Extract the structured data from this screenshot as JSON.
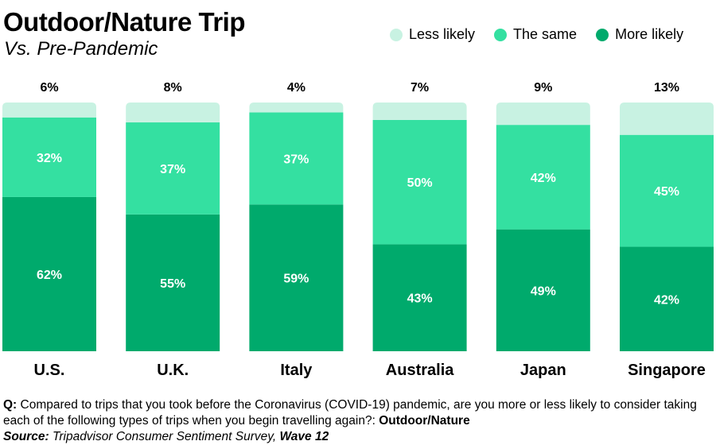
{
  "header": {
    "title": "Outdoor/Nature Trip",
    "subtitle": "Vs. Pre-Pandemic"
  },
  "colors": {
    "less_likely": "#c8f2e2",
    "the_same": "#34e0a1",
    "more_likely": "#00aa6c",
    "label_dark": "#000000",
    "label_light": "#ffffff"
  },
  "chart_data": {
    "type": "bar",
    "stacked": true,
    "categories": [
      "U.S.",
      "U.K.",
      "Italy",
      "Australia",
      "Japan",
      "Singapore"
    ],
    "series": [
      {
        "name": "More likely",
        "values": [
          62,
          55,
          59,
          43,
          49,
          42
        ]
      },
      {
        "name": "The same",
        "values": [
          32,
          37,
          37,
          50,
          42,
          45
        ]
      },
      {
        "name": "Less likely",
        "values": [
          6,
          8,
          4,
          7,
          9,
          13
        ]
      }
    ],
    "value_labels": {
      "More likely": [
        "62%",
        "55%",
        "59%",
        "43%",
        "49%",
        "42%"
      ],
      "The same": [
        "32%",
        "37%",
        "37%",
        "50%",
        "42%",
        "45%"
      ],
      "Less likely": [
        "6%",
        "8%",
        "4%",
        "7%",
        "9%",
        "13%"
      ]
    },
    "legend": [
      "Less likely",
      "The same",
      "More likely"
    ],
    "legend_position": "top-right",
    "ylim": [
      0,
      100
    ],
    "grid": false
  },
  "footer": {
    "question_prefix": "Q:",
    "question_text": " Compared to trips that you took before the Coronavirus (COVID-19) pandemic, are you more or less likely to consider taking each of the following types of trips when you begin travelling again?: ",
    "question_topic": "Outdoor/Nature",
    "source_prefix": "Source:",
    "source_text": " Tripadvisor Consumer Sentiment Survey, ",
    "source_wave": "Wave 12"
  }
}
